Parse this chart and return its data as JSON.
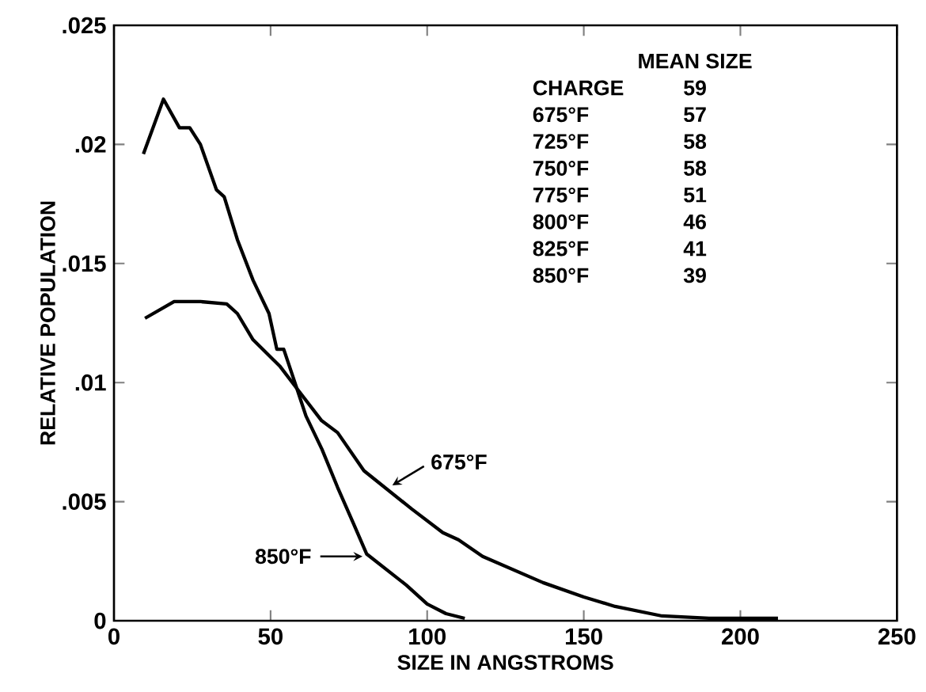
{
  "chart_data": {
    "type": "line",
    "xlabel": "SIZE IN ANGSTROMS",
    "ylabel": "RELATIVE POPULATION",
    "xlim": [
      0,
      250
    ],
    "xticks": [
      0,
      50,
      100,
      150,
      200,
      250
    ],
    "ylim": [
      0,
      0.025
    ],
    "yticks": [
      {
        "value": 0,
        "label": "0"
      },
      {
        "value": 0.005,
        "label": ".005"
      },
      {
        "value": 0.01,
        "label": ".01"
      },
      {
        "value": 0.015,
        "label": ".015"
      },
      {
        "value": 0.02,
        "label": ".02"
      },
      {
        "value": 0.025,
        "label": ".025"
      }
    ],
    "marker": "none",
    "line_style": "solid",
    "series": [
      {
        "color": "#000000",
        "x": [
          9.9,
          19.2,
          27.6,
          36,
          39.4,
          44.4,
          52.9,
          58.7,
          66.3,
          71.4,
          79.8,
          95,
          105,
          110,
          117.7,
          137,
          150,
          160,
          175,
          190,
          212
        ],
        "values": [
          0.0127,
          0.0134,
          0.0134,
          0.0133,
          0.0129,
          0.0118,
          0.0107,
          0.0097,
          0.0084,
          0.0079,
          0.0063,
          0.0047,
          0.0037,
          0.0034,
          0.0027,
          0.0016,
          0.001,
          0.0006,
          0.0002,
          0.0001,
          0.0001
        ]
      },
      {
        "color": "#000000",
        "x": [
          9.4,
          15.8,
          20.9,
          24.2,
          27.6,
          32.7,
          35.2,
          39.4,
          44.4,
          49.5,
          52,
          54.2,
          57,
          61.3,
          66.4,
          71.4,
          76.4,
          80.7,
          93.3,
          100,
          106,
          112
        ],
        "values": [
          0.0196,
          0.0219,
          0.0207,
          0.0207,
          0.02,
          0.0181,
          0.0178,
          0.016,
          0.0143,
          0.0129,
          0.0114,
          0.0114,
          0.0103,
          0.0086,
          0.0072,
          0.0056,
          0.0041,
          0.0028,
          0.0015,
          0.0007,
          0.0003,
          0.0001
        ]
      }
    ],
    "annotations": [
      {
        "text": "675°F",
        "x": 88.2,
        "y": 0.0056
      },
      {
        "text": "850°F",
        "x": 80.7,
        "y": 0.0027
      },
      "MEAN SIZE",
      "CHARGE",
      "59",
      "675°F",
      "57",
      "725°F",
      "58",
      "750°F",
      "58",
      "775°F",
      "51",
      "800°F",
      "46",
      "825°F",
      "41",
      "850°F",
      "39"
    ]
  }
}
